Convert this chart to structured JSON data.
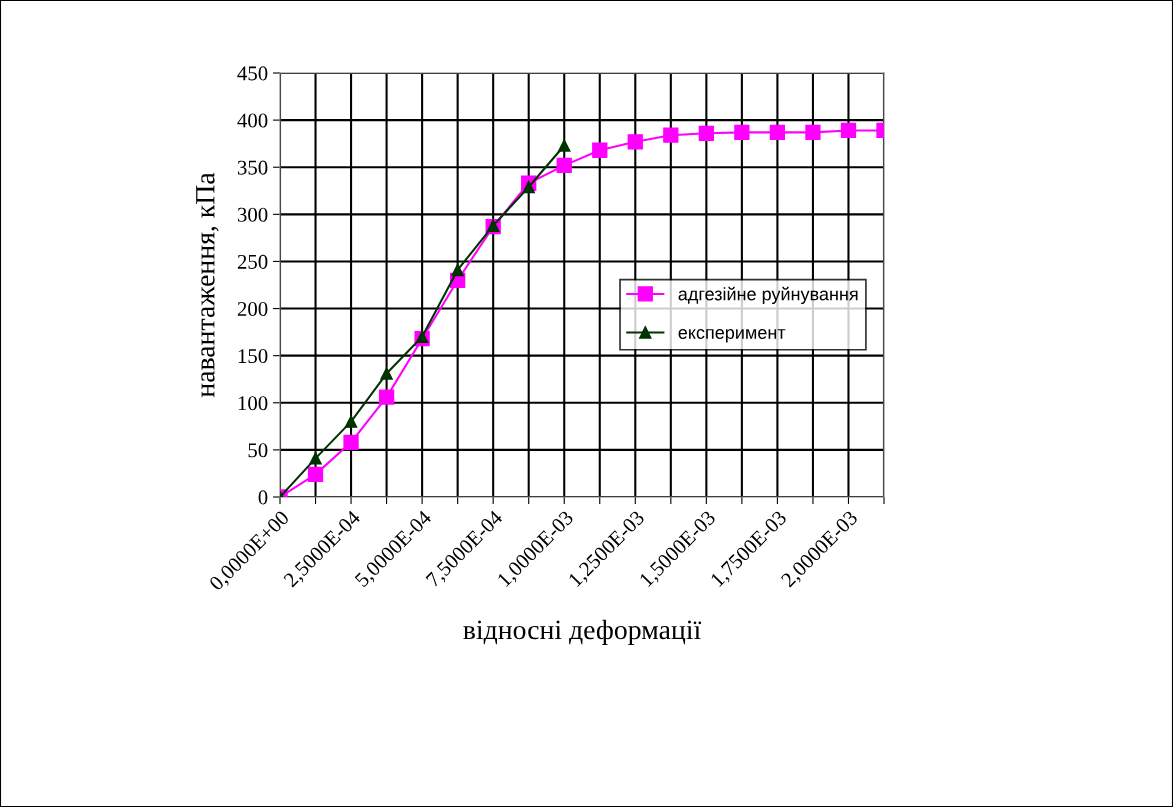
{
  "chart_data": {
    "type": "line",
    "xlabel": "відносні деформації",
    "ylabel": "навантаження, кПа",
    "categories": [
      "0,0000E+00",
      null,
      "2,5000E-04",
      null,
      "5,0000E-04",
      null,
      "7,5000E-04",
      null,
      "1,0000E-03",
      null,
      "1,2500E-03",
      null,
      "1,5000E-03",
      null,
      "1,7500E-03",
      null,
      "2,0000E-03",
      null
    ],
    "series": [
      {
        "name": "адгезійне руйнування",
        "color": "#ff00ff",
        "marker": "square",
        "values": [
          0,
          24,
          58,
          106,
          168,
          230,
          287,
          333,
          352,
          368,
          377,
          384,
          386,
          387,
          387,
          387,
          389,
          389
        ]
      },
      {
        "name": "експеримент",
        "color": "#003300",
        "marker": "triangle",
        "values": [
          0,
          41,
          80,
          131,
          170,
          241,
          288,
          329,
          373,
          null,
          null,
          null,
          null,
          null,
          null,
          null,
          null,
          null
        ]
      }
    ],
    "ylim": [
      0,
      450
    ],
    "yticks": [
      0,
      50,
      100,
      150,
      200,
      250,
      300,
      350,
      400,
      450
    ],
    "grid": true,
    "legend": "right",
    "line_style": "solid"
  }
}
